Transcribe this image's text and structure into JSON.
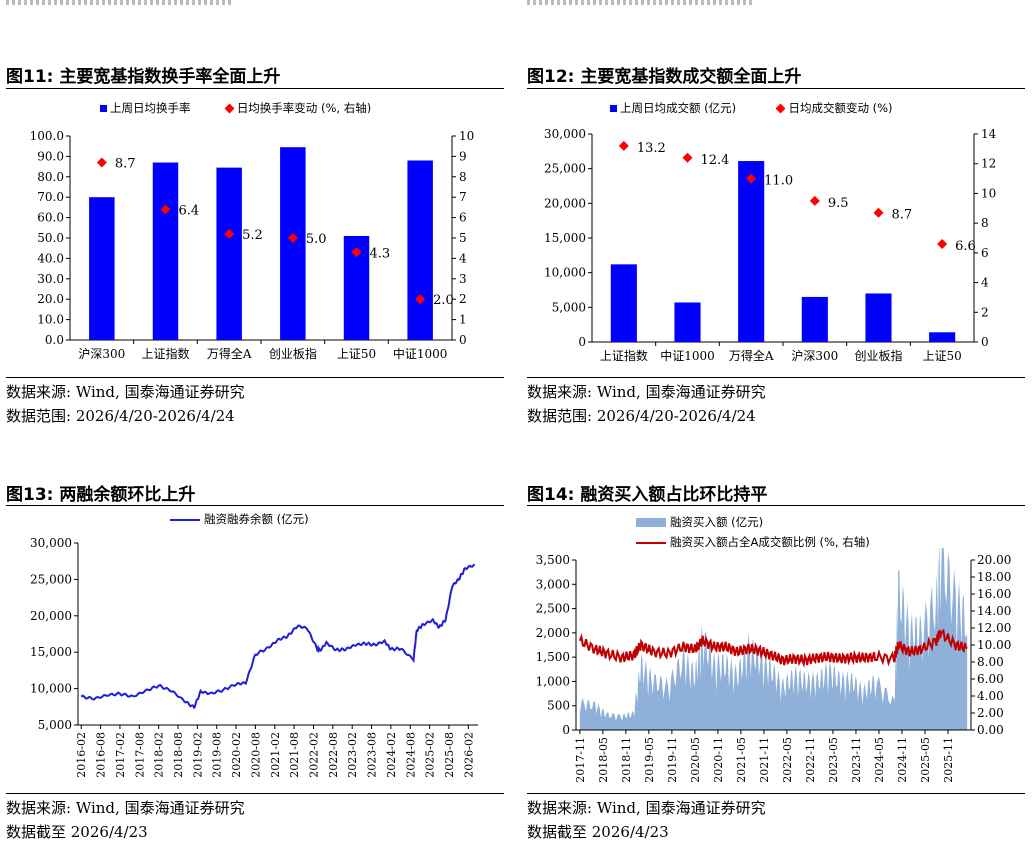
{
  "colors": {
    "bar_blue": "#0000ff",
    "marker_red": "#ff0000",
    "line_blue": "#1f1fd6",
    "line_red": "#c00000",
    "area_blue": "#8fb0d8"
  },
  "fig11": {
    "title": "图11:  主要宽基指数换手率全面上升",
    "source": "数据来源:  Wind, 国泰海通证券研究",
    "range": "数据范围:  2026/4/20-2026/4/24"
  },
  "fig12": {
    "title": "图12:  主要宽基指数成交额全面上升",
    "source": "数据来源:  Wind, 国泰海通证券研究",
    "range": "数据范围:  2026/4/20-2026/4/24"
  },
  "fig13": {
    "title": "图13:  两融余额环比上升",
    "source": "数据来源:  Wind, 国泰海通证券研究",
    "range": "数据截至 2026/4/23"
  },
  "fig14": {
    "title": "图14:  融资买入额占比环比持平",
    "source": "数据来源:  Wind, 国泰海通证券研究",
    "range": "数据截至 2026/4/23"
  },
  "chart_data": [
    {
      "id": "fig11",
      "type": "bar",
      "categories": [
        "沪深300",
        "上证指数",
        "万得全A",
        "创业板指",
        "上证50",
        "中证1000"
      ],
      "series": [
        {
          "name": "上周日均换手率",
          "axis": "left",
          "type": "bar",
          "values": [
            70.0,
            87.0,
            84.5,
            94.5,
            51.0,
            88.0
          ]
        },
        {
          "name": "日均换手率变动 (%, 右轴)",
          "axis": "right",
          "type": "scatter",
          "values": [
            8.7,
            6.4,
            5.2,
            5.0,
            4.3,
            2.0
          ],
          "labels": [
            "8.7",
            "6.4",
            "5.2",
            "5.0",
            "4.3",
            "2.0"
          ]
        }
      ],
      "ylim": [
        0,
        100
      ],
      "y2lim": [
        0,
        10
      ],
      "yticks": [
        "0.0",
        "10.0",
        "20.0",
        "30.0",
        "40.0",
        "50.0",
        "60.0",
        "70.0",
        "80.0",
        "90.0",
        "100.0"
      ],
      "y2ticks": [
        "0",
        "1",
        "2",
        "3",
        "4",
        "5",
        "6",
        "7",
        "8",
        "9",
        "10"
      ],
      "legend_position": "top"
    },
    {
      "id": "fig12",
      "type": "bar",
      "categories": [
        "上证指数",
        "中证1000",
        "万得全A",
        "沪深300",
        "创业板指",
        "上证50"
      ],
      "series": [
        {
          "name": "上周日均成交额 (亿元)",
          "axis": "left",
          "type": "bar",
          "values": [
            11200,
            5700,
            26100,
            6500,
            7000,
            1400
          ]
        },
        {
          "name": "日均成交额变动 (%)",
          "axis": "right",
          "type": "scatter",
          "values": [
            13.2,
            12.4,
            11.0,
            9.5,
            8.7,
            6.6
          ],
          "labels": [
            "13.2",
            "12.4",
            "11.0",
            "9.5",
            "8.7",
            "6.6"
          ]
        }
      ],
      "ylim": [
        0,
        30000
      ],
      "y2lim": [
        0,
        14
      ],
      "yticks": [
        "0",
        "5,000",
        "10,000",
        "15,000",
        "20,000",
        "25,000",
        "30,000"
      ],
      "y2ticks": [
        "0",
        "2",
        "4",
        "6",
        "8",
        "10",
        "12",
        "14"
      ],
      "legend_position": "top"
    },
    {
      "id": "fig13",
      "type": "line",
      "series": [
        {
          "name": "融资融券余额 (亿元)",
          "x": [
            "2016-02",
            "2016-06",
            "2016-10",
            "2017-02",
            "2017-06",
            "2017-10",
            "2018-02",
            "2018-06",
            "2018-10",
            "2019-01",
            "2019-03",
            "2019-06",
            "2019-10",
            "2020-02",
            "2020-05",
            "2020-08",
            "2020-12",
            "2021-03",
            "2021-06",
            "2021-09",
            "2021-12",
            "2022-03",
            "2022-04",
            "2022-06",
            "2022-09",
            "2022-12",
            "2023-03",
            "2023-06",
            "2023-09",
            "2023-12",
            "2024-02",
            "2024-05",
            "2024-09",
            "2024-10",
            "2024-12",
            "2025-03",
            "2025-05",
            "2025-07",
            "2025-09",
            "2025-11",
            "2026-01",
            "2026-04"
          ],
          "values": [
            8900,
            8600,
            9100,
            9300,
            8900,
            9700,
            10400,
            9700,
            8300,
            7400,
            9600,
            9300,
            9800,
            10600,
            10800,
            14700,
            15600,
            16700,
            17200,
            18600,
            18300,
            15600,
            15200,
            16300,
            15300,
            15400,
            16000,
            16200,
            16000,
            16500,
            15400,
            15500,
            14000,
            18000,
            18800,
            19400,
            18400,
            19500,
            24100,
            25000,
            26500,
            27000
          ]
        }
      ],
      "xticks": [
        "2016-02",
        "2016-08",
        "2017-02",
        "2017-08",
        "2018-02",
        "2018-08",
        "2019-02",
        "2019-08",
        "2020-02",
        "2020-08",
        "2021-02",
        "2021-08",
        "2022-02",
        "2022-08",
        "2023-02",
        "2023-08",
        "2024-02",
        "2024-08",
        "2025-02",
        "2025-08",
        "2026-02"
      ],
      "ylim": [
        5000,
        30000
      ],
      "yticks": [
        "5,000",
        "10,000",
        "15,000",
        "20,000",
        "25,000",
        "30,000"
      ],
      "legend_position": "top"
    },
    {
      "id": "fig14",
      "type": "area",
      "series": [
        {
          "name": "融资买入额 (亿元)",
          "axis": "left",
          "type": "area",
          "x": [
            "2017-11",
            "2018-03",
            "2018-06",
            "2018-10",
            "2019-01",
            "2019-03",
            "2019-06",
            "2019-10",
            "2020-02",
            "2020-05",
            "2020-07",
            "2020-10",
            "2021-01",
            "2021-04",
            "2021-07",
            "2021-10",
            "2022-01",
            "2022-04",
            "2022-07",
            "2022-10",
            "2023-01",
            "2023-04",
            "2023-07",
            "2023-10",
            "2024-01",
            "2024-04",
            "2024-09",
            "2024-10",
            "2025-01",
            "2025-04",
            "2025-08",
            "2025-09",
            "2026-01",
            "2026-04"
          ],
          "values": [
            500,
            450,
            280,
            250,
            300,
            1200,
            900,
            800,
            1300,
            1000,
            1700,
            1200,
            1200,
            1000,
            1500,
            1300,
            1100,
            800,
            1000,
            900,
            900,
            1100,
            900,
            900,
            700,
            900,
            500,
            2600,
            1800,
            1800,
            2400,
            3200,
            2400,
            2000
          ]
        },
        {
          "name": "融资买入额占全A成交额比例 (%, 右轴)",
          "axis": "right",
          "type": "line",
          "x": [
            "2017-11",
            "2018-03",
            "2018-06",
            "2018-10",
            "2019-01",
            "2019-03",
            "2019-06",
            "2019-10",
            "2020-02",
            "2020-05",
            "2020-07",
            "2020-10",
            "2021-01",
            "2021-04",
            "2021-07",
            "2021-10",
            "2022-01",
            "2022-04",
            "2022-07",
            "2022-10",
            "2023-01",
            "2023-04",
            "2023-07",
            "2023-10",
            "2024-01",
            "2024-04",
            "2024-09",
            "2024-10",
            "2025-01",
            "2025-04",
            "2025-08",
            "2025-09",
            "2026-01",
            "2026-04"
          ],
          "values": [
            10.5,
            9.5,
            9.0,
            8.5,
            8.8,
            10.0,
            9.2,
            9.0,
            9.8,
            9.5,
            10.5,
            9.8,
            9.8,
            9.2,
            9.6,
            9.3,
            8.8,
            8.2,
            8.4,
            8.2,
            8.5,
            8.6,
            8.4,
            8.5,
            8.5,
            8.6,
            8.4,
            10.0,
            9.2,
            9.5,
            10.5,
            11.5,
            10.0,
            9.6
          ]
        }
      ],
      "xticks": [
        "2017-11",
        "2018-05",
        "2018-11",
        "2019-05",
        "2019-11",
        "2020-05",
        "2020-11",
        "2021-05",
        "2021-11",
        "2022-05",
        "2022-11",
        "2023-05",
        "2023-11",
        "2024-05",
        "2024-11",
        "2025-05",
        "2025-11"
      ],
      "ylim": [
        0,
        3500
      ],
      "y2lim": [
        0,
        20
      ],
      "yticks": [
        "0",
        "500",
        "1,000",
        "1,500",
        "2,000",
        "2,500",
        "3,000",
        "3,500"
      ],
      "y2ticks": [
        "0.00",
        "2.00",
        "4.00",
        "6.00",
        "8.00",
        "10.00",
        "12.00",
        "14.00",
        "16.00",
        "18.00",
        "20.00"
      ],
      "legend_position": "top"
    }
  ]
}
